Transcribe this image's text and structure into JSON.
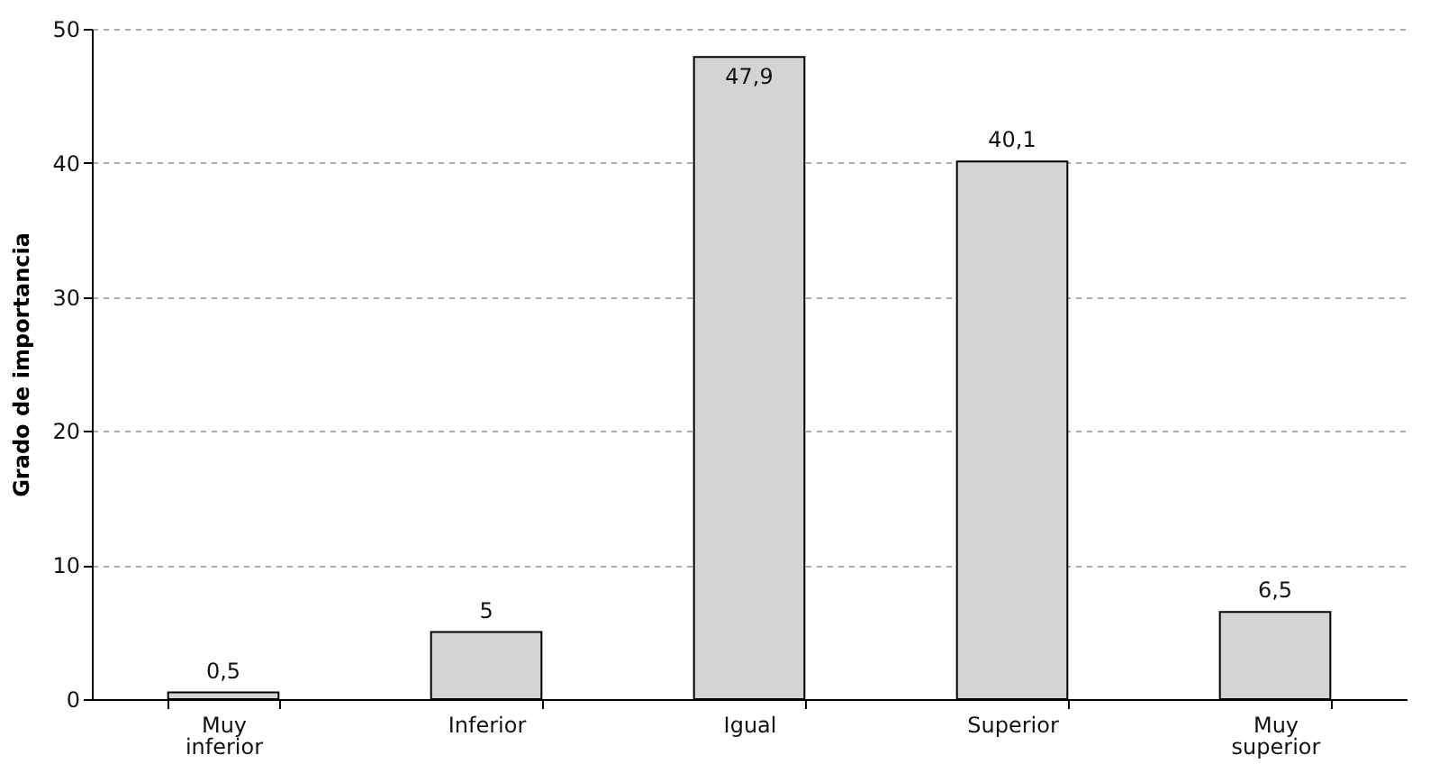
{
  "chart_data": {
    "type": "bar",
    "ylabel": "Grado de importancia",
    "categories": [
      "Muy inferior",
      "Inferior",
      "Igual",
      "Superior",
      "Muy superior"
    ],
    "values": [
      0.5,
      5,
      47.9,
      40.1,
      6.5
    ],
    "value_labels": [
      "0,5",
      "5",
      "47,9",
      "40,1",
      "6,5"
    ],
    "color": "#d4d4d4",
    "ylim": [
      0,
      50
    ],
    "yticks": [
      0,
      10,
      20,
      30,
      40,
      50
    ],
    "grid": "y"
  }
}
